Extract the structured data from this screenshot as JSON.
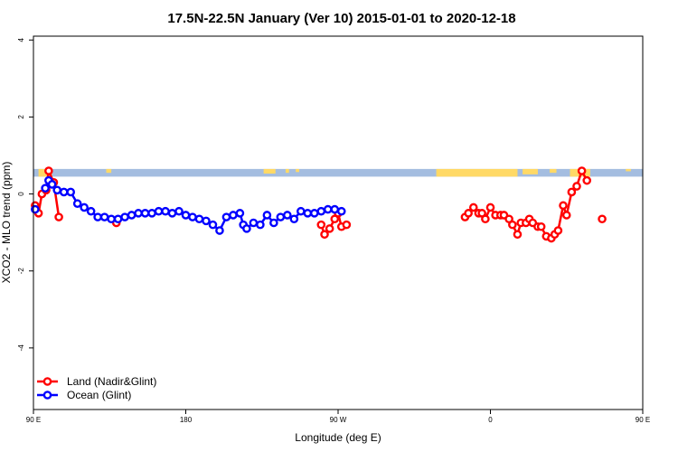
{
  "chart_data": {
    "type": "line",
    "title": "17.5N-22.5N January (Ver 10)   2015-01-01 to 2020-12-18",
    "xlabel": "Longitude (deg E)",
    "ylabel": "XCO2 - MLO trend (ppm)",
    "xlim": [
      90,
      450
    ],
    "ylim": [
      -5.6,
      4.1
    ],
    "x_ticks": [
      {
        "value": 90,
        "label": "90 E"
      },
      {
        "value": 180,
        "label": "180"
      },
      {
        "value": 270,
        "label": "90 W"
      },
      {
        "value": 360,
        "label": "0"
      },
      {
        "value": 450,
        "label": "90 E"
      },
      {
        "value": 540,
        "label": "180"
      }
    ],
    "y_ticks": [
      {
        "value": -4,
        "label": "-4"
      },
      {
        "value": -2,
        "label": "-2"
      },
      {
        "value": 0,
        "label": "0"
      },
      {
        "value": 2,
        "label": "2"
      },
      {
        "value": 4,
        "label": "4"
      }
    ],
    "legend_position": "bottom-left",
    "land_mask_band": {
      "y_top": 0.65,
      "y_bottom": 0.45,
      "land_color": "#ffd966",
      "ocean_color": "#a4bde0"
    },
    "series": [
      {
        "name": "Land (Nadir&Glint)",
        "color": "#ff0000",
        "segments": [
          [
            [
              91,
              -0.3
            ],
            [
              93,
              -0.5
            ],
            [
              95,
              0.0
            ],
            [
              97.5,
              0.1
            ],
            [
              99,
              0.6
            ],
            [
              102,
              0.3
            ],
            [
              105,
              -0.6
            ]
          ],
          [
            [
              139,
              -0.75
            ]
          ],
          [
            [
              260,
              -0.8
            ],
            [
              262,
              -1.05
            ],
            [
              265,
              -0.9
            ],
            [
              268,
              -0.65
            ],
            [
              270,
              -0.5
            ],
            [
              272,
              -0.85
            ],
            [
              275,
              -0.8
            ]
          ],
          [
            [
              345,
              -0.6
            ],
            [
              347,
              -0.5
            ],
            [
              350,
              -0.35
            ],
            [
              353,
              -0.5
            ],
            [
              355,
              -0.5
            ],
            [
              357,
              -0.65
            ],
            [
              360,
              -0.35
            ],
            [
              363,
              -0.55
            ],
            [
              366,
              -0.55
            ],
            [
              368,
              -0.55
            ],
            [
              371,
              -0.65
            ],
            [
              373,
              -0.8
            ],
            [
              376,
              -1.05
            ],
            [
              378,
              -0.75
            ],
            [
              381,
              -0.75
            ],
            [
              383,
              -0.65
            ],
            [
              385,
              -0.75
            ],
            [
              388,
              -0.85
            ],
            [
              390,
              -0.85
            ],
            [
              393,
              -1.1
            ],
            [
              396,
              -1.15
            ],
            [
              398,
              -1.05
            ],
            [
              400,
              -0.95
            ],
            [
              403,
              -0.3
            ],
            [
              405,
              -0.55
            ],
            [
              408,
              0.05
            ],
            [
              411,
              0.2
            ],
            [
              414,
              0.6
            ],
            [
              417,
              0.35
            ]
          ],
          [
            [
              426,
              -0.65
            ]
          ]
        ]
      },
      {
        "name": "Ocean (Glint)",
        "color": "#0000ff",
        "segments": [
          [
            [
              91,
              -0.4
            ]
          ],
          [
            [
              97,
              0.15
            ],
            [
              99,
              0.35
            ],
            [
              101,
              0.25
            ],
            [
              104,
              0.1
            ],
            [
              108,
              0.05
            ],
            [
              112,
              0.05
            ],
            [
              116,
              -0.25
            ],
            [
              120,
              -0.35
            ],
            [
              124,
              -0.45
            ],
            [
              128,
              -0.6
            ],
            [
              132,
              -0.6
            ],
            [
              136,
              -0.65
            ],
            [
              140,
              -0.65
            ],
            [
              144,
              -0.6
            ],
            [
              148,
              -0.55
            ],
            [
              152,
              -0.5
            ],
            [
              156,
              -0.5
            ],
            [
              160,
              -0.5
            ],
            [
              164,
              -0.45
            ],
            [
              168,
              -0.45
            ],
            [
              172,
              -0.5
            ],
            [
              176,
              -0.45
            ],
            [
              180,
              -0.55
            ],
            [
              184,
              -0.6
            ],
            [
              188,
              -0.65
            ],
            [
              192,
              -0.7
            ],
            [
              196,
              -0.8
            ],
            [
              200,
              -0.95
            ],
            [
              204,
              -0.6
            ],
            [
              208,
              -0.55
            ],
            [
              212,
              -0.5
            ],
            [
              214,
              -0.8
            ],
            [
              216,
              -0.9
            ],
            [
              220,
              -0.75
            ],
            [
              224,
              -0.8
            ],
            [
              228,
              -0.55
            ],
            [
              232,
              -0.75
            ],
            [
              236,
              -0.6
            ],
            [
              240,
              -0.55
            ],
            [
              244,
              -0.65
            ],
            [
              248,
              -0.45
            ],
            [
              252,
              -0.5
            ],
            [
              256,
              -0.5
            ],
            [
              260,
              -0.45
            ],
            [
              264,
              -0.4
            ],
            [
              268,
              -0.4
            ],
            [
              272,
              -0.45
            ]
          ]
        ]
      }
    ]
  }
}
